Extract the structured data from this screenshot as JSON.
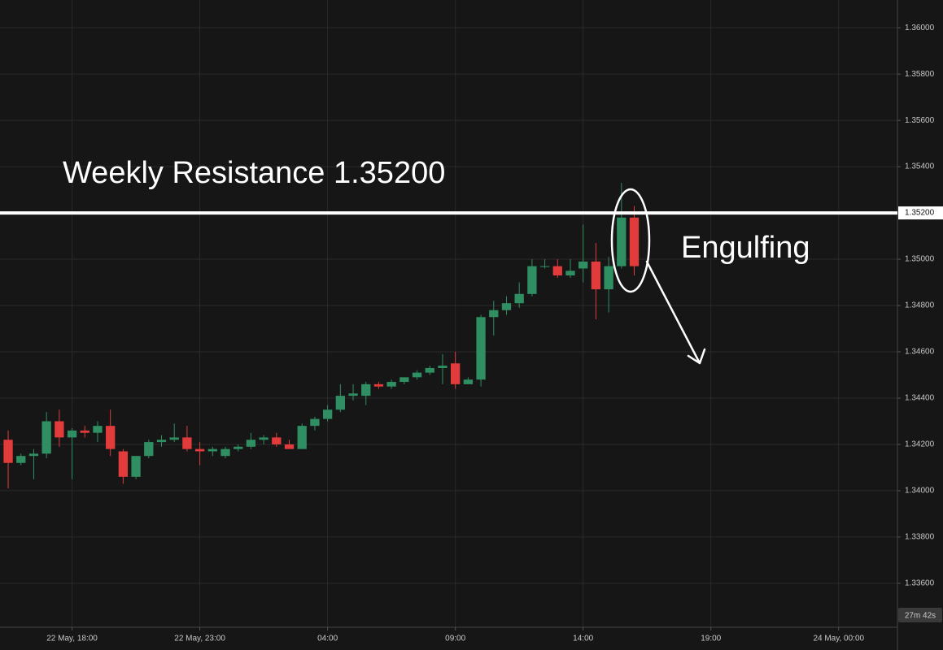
{
  "chart_data": {
    "type": "candlestick",
    "up_color": "#2f8f62",
    "down_color": "#e23b3b",
    "grid": true,
    "open": [
      1.3422,
      1.3412,
      1.3415,
      1.3416,
      1.343,
      1.3423,
      1.3426,
      1.3425,
      1.3428,
      1.3417,
      1.3406,
      1.3415,
      1.3421,
      1.3422,
      1.3423,
      1.3418,
      1.3417,
      1.3415,
      1.3418,
      1.3419,
      1.3422,
      1.3423,
      1.342,
      1.3418,
      1.3428,
      1.3431,
      1.3435,
      1.3441,
      1.3441,
      1.3446,
      1.3445,
      1.3447,
      1.3449,
      1.3451,
      1.3453,
      1.3455,
      1.3446,
      1.3448,
      1.3475,
      1.3478,
      1.3481,
      1.3485,
      1.3497,
      1.3497,
      1.3493,
      1.3496,
      1.3499,
      1.3487,
      1.3497,
      1.3518
    ],
    "high": [
      1.3426,
      1.3416,
      1.3418,
      1.3434,
      1.3435,
      1.3427,
      1.3428,
      1.343,
      1.3435,
      1.3418,
      1.3415,
      1.3422,
      1.3424,
      1.3429,
      1.3428,
      1.3421,
      1.3419,
      1.3419,
      1.342,
      1.3425,
      1.3424,
      1.3425,
      1.3422,
      1.3429,
      1.3432,
      1.3437,
      1.3446,
      1.3446,
      1.3447,
      1.3447,
      1.3448,
      1.3449,
      1.3452,
      1.3454,
      1.3459,
      1.346,
      1.3449,
      1.3476,
      1.3482,
      1.3484,
      1.349,
      1.35,
      1.35,
      1.35,
      1.35,
      1.3515,
      1.3507,
      1.3501,
      1.3533,
      1.3523
    ],
    "low": [
      1.3401,
      1.3411,
      1.3405,
      1.3414,
      1.3419,
      1.3405,
      1.3423,
      1.3421,
      1.3415,
      1.3403,
      1.3405,
      1.3414,
      1.3419,
      1.3421,
      1.3417,
      1.3411,
      1.3415,
      1.3414,
      1.3417,
      1.3418,
      1.342,
      1.3419,
      1.3418,
      1.3418,
      1.3426,
      1.343,
      1.3434,
      1.3439,
      1.3437,
      1.3444,
      1.3444,
      1.3446,
      1.3448,
      1.345,
      1.3446,
      1.3444,
      1.3446,
      1.3445,
      1.3467,
      1.3476,
      1.3479,
      1.3484,
      1.3496,
      1.3492,
      1.3492,
      1.349,
      1.3474,
      1.3477,
      1.3496,
      1.3493
    ],
    "close": [
      1.3412,
      1.3415,
      1.3416,
      1.343,
      1.3423,
      1.3426,
      1.3425,
      1.3428,
      1.3418,
      1.3406,
      1.3415,
      1.3421,
      1.3422,
      1.3423,
      1.3418,
      1.3417,
      1.3418,
      1.3418,
      1.3419,
      1.3422,
      1.3423,
      1.342,
      1.3418,
      1.3428,
      1.3431,
      1.3435,
      1.3441,
      1.3442,
      1.3446,
      1.3445,
      1.3447,
      1.3449,
      1.3451,
      1.3453,
      1.3454,
      1.3446,
      1.3448,
      1.3475,
      1.3478,
      1.3481,
      1.3485,
      1.3497,
      1.3497,
      1.3493,
      1.3495,
      1.3499,
      1.3487,
      1.3497,
      1.3518,
      1.3497
    ],
    "xlim": [
      -0.64,
      69.6
    ],
    "xticks": [
      {
        "value": 5,
        "label": "22 May, 18:00"
      },
      {
        "value": 15,
        "label": "22 May, 23:00"
      },
      {
        "value": 25,
        "label": "04:00"
      },
      {
        "value": 35,
        "label": "09:00"
      },
      {
        "value": 45,
        "label": "14:00"
      },
      {
        "value": 55,
        "label": "19:00"
      },
      {
        "value": 65,
        "label": "24 May, 00:00"
      }
    ],
    "ylim": [
      1.3341,
      1.3612
    ],
    "yticks": [
      {
        "value": 1.336,
        "label": "1.33600"
      },
      {
        "value": 1.338,
        "label": "1.33800"
      },
      {
        "value": 1.34,
        "label": "1.34000"
      },
      {
        "value": 1.342,
        "label": "1.34200"
      },
      {
        "value": 1.344,
        "label": "1.34400"
      },
      {
        "value": 1.346,
        "label": "1.34600"
      },
      {
        "value": 1.348,
        "label": "1.34800"
      },
      {
        "value": 1.35,
        "label": "1.35000"
      },
      {
        "value": 1.354,
        "label": "1.35400"
      },
      {
        "value": 1.356,
        "label": "1.35600"
      },
      {
        "value": 1.358,
        "label": "1.35800"
      },
      {
        "value": 1.36,
        "label": "1.36000"
      }
    ],
    "resistance": {
      "value": 1.352,
      "label": "1.35200"
    },
    "resistance_text": "Weekly Resistance 1.35200",
    "pattern_text": "Engulfing",
    "countdown": "27m 42s"
  }
}
